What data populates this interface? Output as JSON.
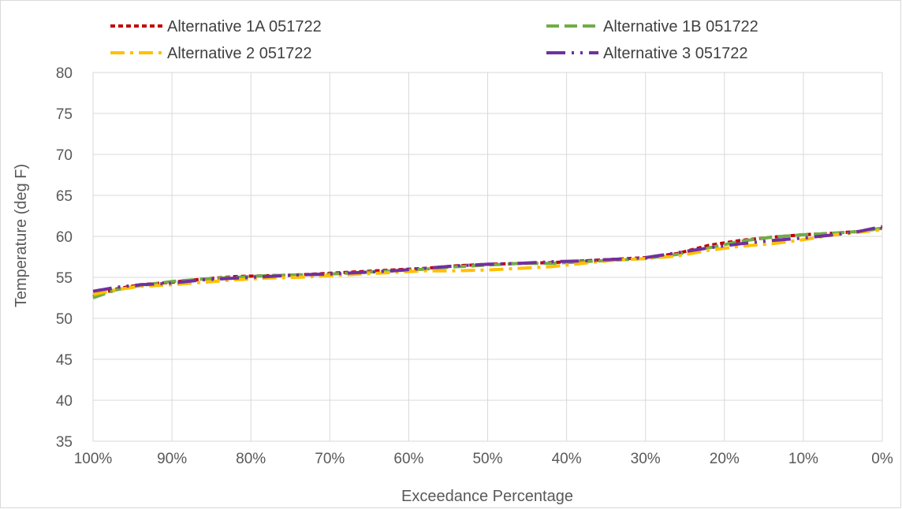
{
  "chart_data": {
    "type": "line",
    "title": "",
    "xlabel": "Exceedance Percentage",
    "ylabel": "Temperature (deg F)",
    "xlim": [
      100,
      0
    ],
    "ylim": [
      35,
      80
    ],
    "x_ticks": [
      100,
      90,
      80,
      70,
      60,
      50,
      40,
      30,
      20,
      10,
      0
    ],
    "x_tick_labels": [
      "100%",
      "90%",
      "80%",
      "70%",
      "60%",
      "50%",
      "40%",
      "30%",
      "20%",
      "10%",
      "0%"
    ],
    "y_ticks": [
      35,
      40,
      45,
      50,
      55,
      60,
      65,
      70,
      75,
      80
    ],
    "y_tick_labels": [
      "35",
      "40",
      "45",
      "50",
      "55",
      "60",
      "65",
      "70",
      "75",
      "80"
    ],
    "grid": true,
    "legend_position": "top",
    "series": [
      {
        "name": "Alternative 1A 051722",
        "color": "#c00000",
        "dash": "short-dash",
        "x": [
          100,
          97,
          94,
          90,
          86,
          82,
          78,
          74,
          70,
          66,
          62,
          58,
          54,
          50,
          46,
          42,
          38,
          34,
          30,
          26,
          22,
          18,
          14,
          10,
          6,
          3,
          0
        ],
        "y": [
          52.7,
          53.6,
          54.1,
          54.4,
          54.8,
          55.1,
          55.2,
          55.3,
          55.5,
          55.7,
          55.9,
          56.1,
          56.4,
          56.6,
          56.7,
          56.8,
          57.0,
          57.2,
          57.4,
          57.9,
          58.9,
          59.5,
          59.9,
          60.2,
          60.4,
          60.6,
          61.0
        ]
      },
      {
        "name": "Alternative 1B 051722",
        "color": "#70ad47",
        "dash": "dash",
        "x": [
          100,
          97,
          94,
          90,
          86,
          82,
          78,
          74,
          70,
          66,
          62,
          58,
          54,
          50,
          46,
          42,
          38,
          34,
          30,
          26,
          22,
          18,
          14,
          10,
          6,
          3,
          0
        ],
        "y": [
          52.5,
          53.5,
          54.0,
          54.5,
          54.8,
          55.0,
          55.2,
          55.3,
          55.4,
          55.6,
          55.8,
          56.0,
          56.3,
          56.5,
          56.7,
          56.7,
          56.9,
          57.1,
          57.3,
          57.8,
          58.6,
          59.4,
          59.9,
          60.2,
          60.4,
          60.6,
          61.0
        ]
      },
      {
        "name": "Alternative 2 051722",
        "color": "#ffc000",
        "dash": "dash-dot",
        "x": [
          100,
          97,
          94,
          90,
          86,
          82,
          78,
          74,
          70,
          66,
          62,
          58,
          54,
          50,
          46,
          42,
          38,
          34,
          30,
          26,
          22,
          18,
          14,
          10,
          6,
          3,
          0
        ],
        "y": [
          52.9,
          53.5,
          53.9,
          54.1,
          54.4,
          54.7,
          54.9,
          55.0,
          55.2,
          55.4,
          55.6,
          55.8,
          55.8,
          55.9,
          56.1,
          56.3,
          56.7,
          57.1,
          57.3,
          57.6,
          58.3,
          58.8,
          59.1,
          59.6,
          60.2,
          60.5,
          60.8
        ]
      },
      {
        "name": "Alternative 3 051722",
        "color": "#7030a0",
        "dash": "long-dash-dot-dot",
        "x": [
          100,
          97,
          94,
          90,
          86,
          82,
          78,
          74,
          70,
          66,
          62,
          58,
          54,
          50,
          46,
          42,
          38,
          34,
          30,
          26,
          22,
          18,
          14,
          10,
          6,
          3,
          0
        ],
        "y": [
          53.3,
          53.8,
          54.1,
          54.3,
          54.7,
          54.9,
          55.1,
          55.3,
          55.4,
          55.6,
          55.8,
          56.1,
          56.4,
          56.6,
          56.7,
          56.9,
          57.0,
          57.2,
          57.4,
          58.0,
          58.6,
          59.1,
          59.5,
          59.8,
          60.2,
          60.6,
          61.2
        ]
      }
    ]
  }
}
